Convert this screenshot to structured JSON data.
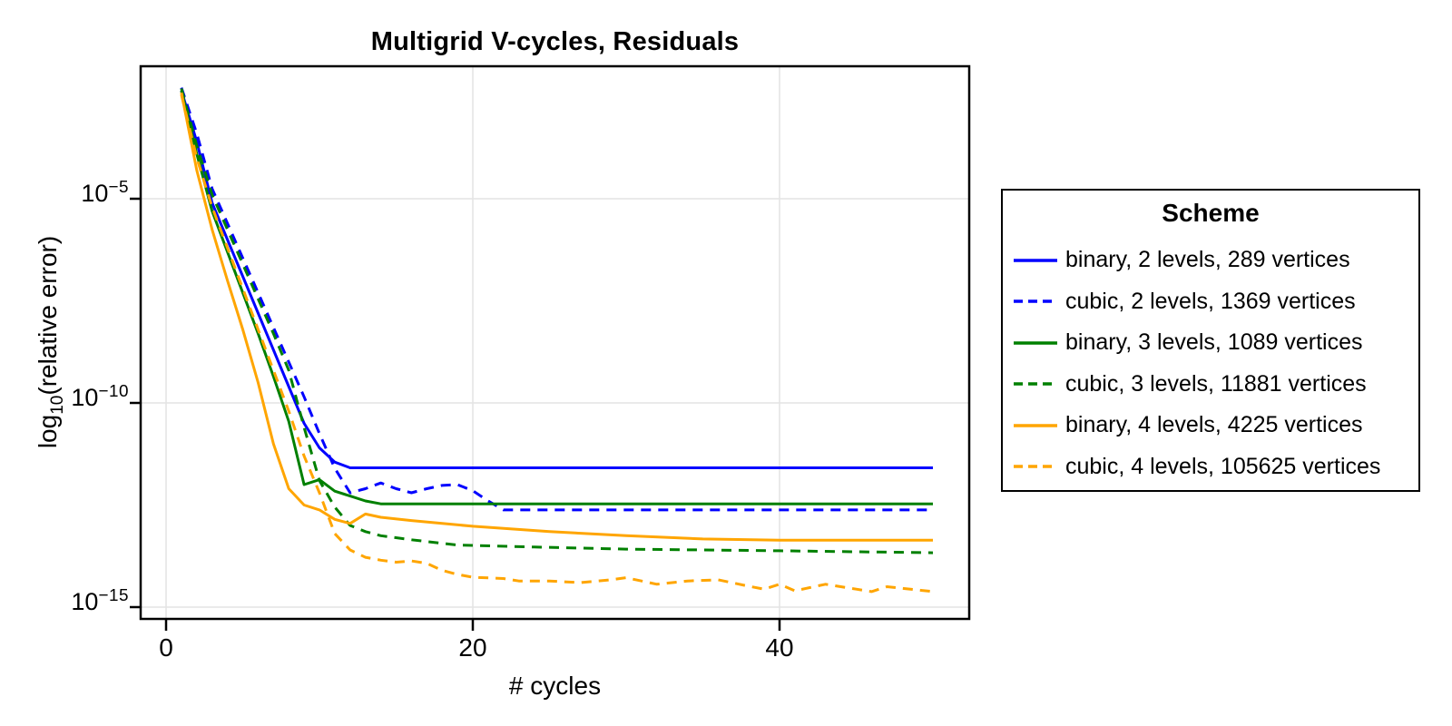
{
  "labels": {
    "y_pre": "log",
    "y_sub": "10",
    "y_post": "(relative error)"
  },
  "chart_data": {
    "type": "line",
    "title": "Multigrid V-cycles, Residuals",
    "xlabel": "# cycles",
    "ylabel": "log10(relative error)",
    "legend_title": "Scheme",
    "legend_position": "right-outside",
    "grid": true,
    "x_axis": {
      "ticks": [
        0,
        20,
        40
      ],
      "range": [
        -1.7,
        52.4
      ]
    },
    "y_axis": {
      "scale": "log10",
      "tick_exponents": [
        -5,
        -10,
        -15
      ],
      "range_exponents": [
        -15.3,
        -1.7
      ]
    },
    "colors": {
      "blue": "#0000ff",
      "green": "#008000",
      "orange": "#ffa500"
    },
    "series": [
      {
        "name": "binary, 2 levels, 289 vertices",
        "scheme": "binary",
        "levels": 2,
        "vertices": 289,
        "color": "blue",
        "style": "solid",
        "points_log10": [
          [
            1,
            -2.35
          ],
          [
            2,
            -3.6
          ],
          [
            3,
            -5.1
          ],
          [
            4,
            -6.0
          ],
          [
            5,
            -6.9
          ],
          [
            6,
            -7.8
          ],
          [
            7,
            -8.7
          ],
          [
            8,
            -9.6
          ],
          [
            9,
            -10.5
          ],
          [
            10,
            -11.1
          ],
          [
            11,
            -11.45
          ],
          [
            12,
            -11.59
          ],
          [
            20,
            -11.59
          ],
          [
            30,
            -11.59
          ],
          [
            40,
            -11.59
          ],
          [
            50,
            -11.59
          ]
        ]
      },
      {
        "name": "cubic, 2 levels, 1369 vertices",
        "scheme": "cubic",
        "levels": 2,
        "vertices": 1369,
        "color": "blue",
        "style": "dashed",
        "points_log10": [
          [
            1,
            -2.28
          ],
          [
            2,
            -3.4
          ],
          [
            3,
            -4.75
          ],
          [
            4,
            -5.6
          ],
          [
            5,
            -6.45
          ],
          [
            6,
            -7.3
          ],
          [
            7,
            -8.15
          ],
          [
            8,
            -9.0
          ],
          [
            9,
            -9.85
          ],
          [
            10,
            -10.75
          ],
          [
            11,
            -11.6
          ],
          [
            12,
            -12.2
          ],
          [
            13,
            -12.1
          ],
          [
            14,
            -11.96
          ],
          [
            15,
            -12.1
          ],
          [
            16,
            -12.2
          ],
          [
            17,
            -12.1
          ],
          [
            18,
            -12.02
          ],
          [
            19,
            -12.0
          ],
          [
            20,
            -12.15
          ],
          [
            21,
            -12.4
          ],
          [
            22,
            -12.62
          ],
          [
            30,
            -12.62
          ],
          [
            40,
            -12.62
          ],
          [
            50,
            -12.62
          ]
        ]
      },
      {
        "name": "binary, 3 levels, 1089 vertices",
        "scheme": "binary",
        "levels": 3,
        "vertices": 1089,
        "color": "green",
        "style": "solid",
        "points_log10": [
          [
            1,
            -2.35
          ],
          [
            2,
            -3.9
          ],
          [
            3,
            -5.3
          ],
          [
            4,
            -6.3
          ],
          [
            5,
            -7.3
          ],
          [
            6,
            -8.3
          ],
          [
            7,
            -9.35
          ],
          [
            8,
            -10.45
          ],
          [
            9,
            -12.0
          ],
          [
            10,
            -11.88
          ],
          [
            11,
            -12.16
          ],
          [
            12,
            -12.28
          ],
          [
            13,
            -12.4
          ],
          [
            14,
            -12.47
          ],
          [
            20,
            -12.47
          ],
          [
            30,
            -12.47
          ],
          [
            40,
            -12.47
          ],
          [
            50,
            -12.47
          ]
        ]
      },
      {
        "name": "cubic, 3 levels, 11881 vertices",
        "scheme": "cubic",
        "levels": 3,
        "vertices": 11881,
        "color": "green",
        "style": "dashed",
        "points_log10": [
          [
            1,
            -2.3
          ],
          [
            2,
            -3.7
          ],
          [
            3,
            -4.9
          ],
          [
            4,
            -5.75
          ],
          [
            5,
            -6.6
          ],
          [
            6,
            -7.45
          ],
          [
            7,
            -8.3
          ],
          [
            8,
            -9.2
          ],
          [
            9,
            -10.6
          ],
          [
            10,
            -11.9
          ],
          [
            11,
            -12.55
          ],
          [
            12,
            -13.0
          ],
          [
            13,
            -13.15
          ],
          [
            14,
            -13.25
          ],
          [
            16,
            -13.35
          ],
          [
            19,
            -13.48
          ],
          [
            24,
            -13.53
          ],
          [
            30,
            -13.58
          ],
          [
            40,
            -13.62
          ],
          [
            50,
            -13.67
          ]
        ]
      },
      {
        "name": "binary, 4 levels, 4225 vertices",
        "scheme": "binary",
        "levels": 4,
        "vertices": 4225,
        "color": "orange",
        "style": "solid",
        "points_log10": [
          [
            1,
            -2.4
          ],
          [
            2,
            -4.3
          ],
          [
            3,
            -5.75
          ],
          [
            4,
            -7.0
          ],
          [
            5,
            -8.2
          ],
          [
            6,
            -9.5
          ],
          [
            7,
            -11.0
          ],
          [
            8,
            -12.1
          ],
          [
            9,
            -12.5
          ],
          [
            10,
            -12.62
          ],
          [
            11,
            -12.85
          ],
          [
            12,
            -12.95
          ],
          [
            13,
            -12.72
          ],
          [
            14,
            -12.8
          ],
          [
            16,
            -12.88
          ],
          [
            20,
            -13.02
          ],
          [
            25,
            -13.15
          ],
          [
            30,
            -13.25
          ],
          [
            35,
            -13.33
          ],
          [
            40,
            -13.36
          ],
          [
            45,
            -13.36
          ],
          [
            50,
            -13.36
          ]
        ]
      },
      {
        "name": "cubic, 4 levels, 105625 vertices",
        "scheme": "cubic",
        "levels": 4,
        "vertices": 105625,
        "color": "orange",
        "style": "dashed",
        "points_log10": [
          [
            1,
            -2.45
          ],
          [
            2,
            -4.0
          ],
          [
            3,
            -5.2
          ],
          [
            4,
            -6.2
          ],
          [
            5,
            -7.2
          ],
          [
            6,
            -8.2
          ],
          [
            7,
            -9.2
          ],
          [
            8,
            -10.2
          ],
          [
            9,
            -11.3
          ],
          [
            10,
            -12.2
          ],
          [
            11,
            -13.2
          ],
          [
            12,
            -13.6
          ],
          [
            13,
            -13.78
          ],
          [
            14,
            -13.85
          ],
          [
            15,
            -13.9
          ],
          [
            16,
            -13.87
          ],
          [
            17,
            -13.93
          ],
          [
            18,
            -14.1
          ],
          [
            19,
            -14.2
          ],
          [
            20,
            -14.27
          ],
          [
            22,
            -14.3
          ],
          [
            23,
            -14.36
          ],
          [
            25,
            -14.36
          ],
          [
            27,
            -14.4
          ],
          [
            29,
            -14.33
          ],
          [
            30,
            -14.28
          ],
          [
            32,
            -14.44
          ],
          [
            34,
            -14.36
          ],
          [
            36,
            -14.33
          ],
          [
            38,
            -14.49
          ],
          [
            39,
            -14.56
          ],
          [
            40,
            -14.44
          ],
          [
            41,
            -14.6
          ],
          [
            43,
            -14.44
          ],
          [
            45,
            -14.56
          ],
          [
            46,
            -14.62
          ],
          [
            47,
            -14.5
          ],
          [
            49,
            -14.58
          ],
          [
            50,
            -14.62
          ]
        ]
      }
    ]
  }
}
